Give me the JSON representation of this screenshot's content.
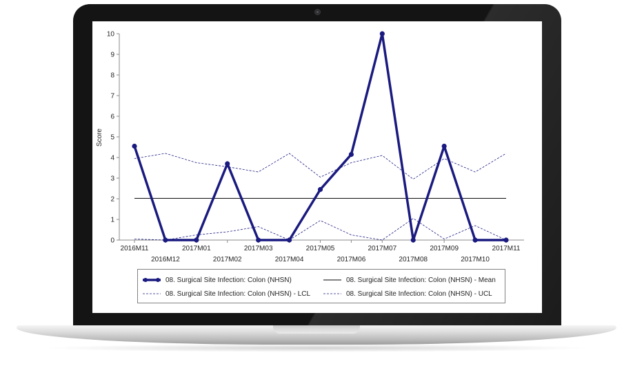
{
  "chart_data": {
    "type": "line",
    "title": "",
    "xlabel": "",
    "ylabel": "Score",
    "ylim": [
      0,
      10
    ],
    "yticks": [
      0,
      1,
      2,
      3,
      4,
      5,
      6,
      7,
      8,
      9,
      10
    ],
    "categories": [
      "2016M11",
      "2016M12",
      "2017M01",
      "2017M02",
      "2017M03",
      "2017M04",
      "2017M05",
      "2017M06",
      "2017M07",
      "2017M08",
      "2017M09",
      "2017M10",
      "2017M11"
    ],
    "series": [
      {
        "name": "08. Surgical Site Infection: Colon (NHSN)",
        "style": "bold-marker",
        "color": "#1a1a80",
        "values": [
          4.55,
          0,
          0,
          3.7,
          0,
          0,
          2.45,
          4.15,
          10,
          0,
          4.55,
          0,
          0
        ]
      },
      {
        "name": "08. Surgical Site Infection: Colon (NHSN) - Mean",
        "style": "solid",
        "color": "#000000",
        "values": [
          2.02,
          2.02,
          2.02,
          2.02,
          2.02,
          2.02,
          2.02,
          2.02,
          2.02,
          2.02,
          2.02,
          2.02,
          2.02
        ]
      },
      {
        "name": "08. Surgical Site Infection: Colon (NHSN) - LCL",
        "style": "dashed",
        "color": "#1a1a80",
        "values": [
          0.05,
          0,
          0.25,
          0.4,
          0.65,
          0,
          0.95,
          0.25,
          0,
          1.05,
          0.05,
          0.7,
          0
        ]
      },
      {
        "name": "08. Surgical Site Infection: Colon (NHSN) - UCL",
        "style": "dashed",
        "color": "#1a1a80",
        "values": [
          3.95,
          4.2,
          3.75,
          3.55,
          3.3,
          4.2,
          3.05,
          3.75,
          4.1,
          2.95,
          3.95,
          3.3,
          4.2
        ]
      }
    ],
    "legend_position": "bottom",
    "grid": false
  }
}
